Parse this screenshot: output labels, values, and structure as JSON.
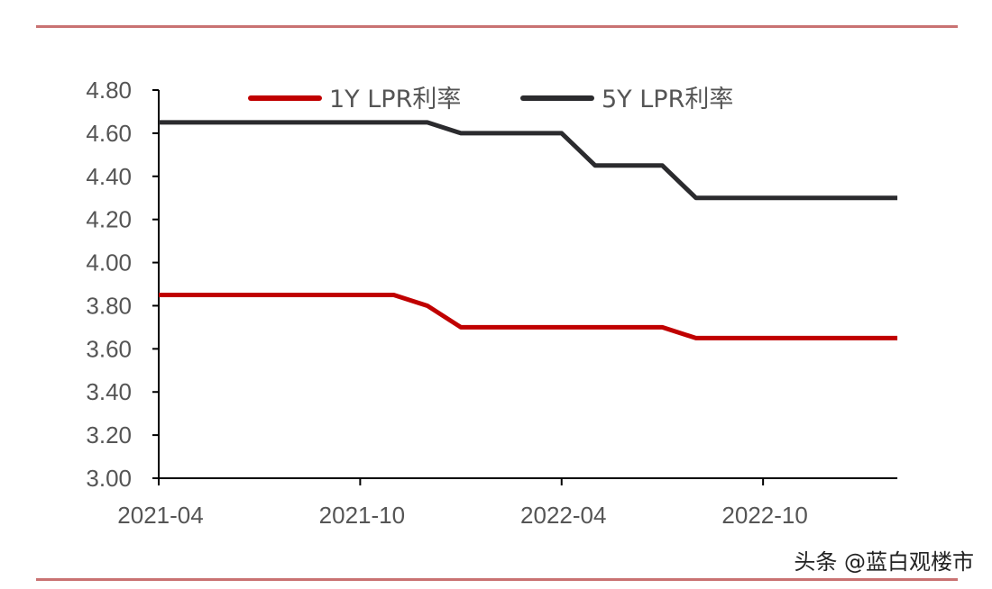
{
  "chart_data": {
    "type": "line",
    "title": "",
    "xlabel": "",
    "ylabel": "",
    "x": [
      "2021-04",
      "2021-05",
      "2021-06",
      "2021-07",
      "2021-08",
      "2021-09",
      "2021-10",
      "2021-11",
      "2021-12",
      "2022-01",
      "2022-02",
      "2022-03",
      "2022-04",
      "2022-05",
      "2022-06",
      "2022-07",
      "2022-08",
      "2022-09",
      "2022-10",
      "2022-11",
      "2022-12",
      "2023-01",
      "2023-02"
    ],
    "x_ticks": [
      "2021-04",
      "2021-10",
      "2022-04",
      "2022-10"
    ],
    "y_ticks": [
      "3.00",
      "3.20",
      "3.40",
      "3.60",
      "3.80",
      "4.00",
      "4.20",
      "4.40",
      "4.60",
      "4.80"
    ],
    "ylim": [
      3.0,
      4.8
    ],
    "grid": false,
    "legend_placement": "top",
    "series": [
      {
        "name": "1Y LPR利率",
        "color": "#c00000",
        "values": [
          3.85,
          3.85,
          3.85,
          3.85,
          3.85,
          3.85,
          3.85,
          3.85,
          3.8,
          3.7,
          3.7,
          3.7,
          3.7,
          3.7,
          3.7,
          3.7,
          3.65,
          3.65,
          3.65,
          3.65,
          3.65,
          3.65,
          3.65
        ]
      },
      {
        "name": "5Y LPR利率",
        "color": "#2b2b2e",
        "values": [
          4.65,
          4.65,
          4.65,
          4.65,
          4.65,
          4.65,
          4.65,
          4.65,
          4.65,
          4.6,
          4.6,
          4.6,
          4.6,
          4.45,
          4.45,
          4.45,
          4.3,
          4.3,
          4.3,
          4.3,
          4.3,
          4.3,
          4.3
        ]
      }
    ]
  },
  "watermark": "头条 @蓝白观楼市"
}
